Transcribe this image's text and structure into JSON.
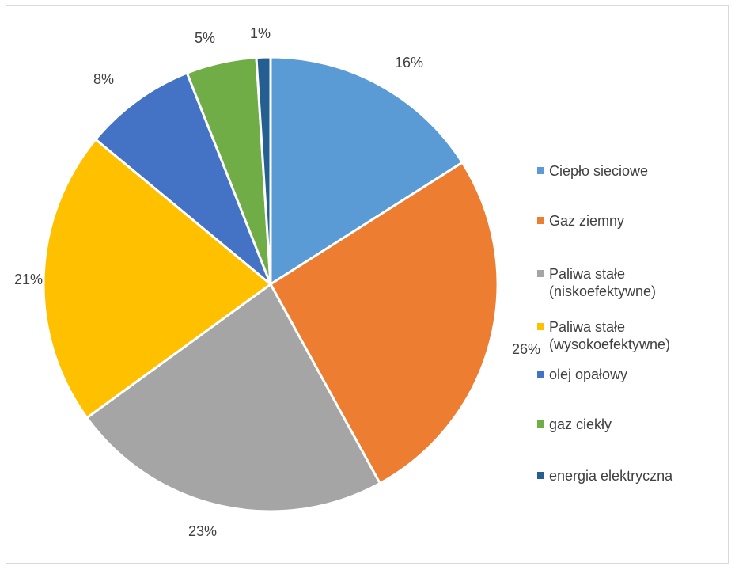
{
  "chart_data": {
    "type": "pie",
    "categories": [
      "Ciepło sieciowe",
      "Gaz ziemny",
      "Paliwa stałe\n(niskoefektywne)",
      "Paliwa stałe\n(wysokoefektywne)",
      "olej opałowy",
      "gaz ciekły",
      "energia elektryczna"
    ],
    "values": [
      16,
      26,
      23,
      21,
      8,
      5,
      1
    ],
    "labels": [
      "16%",
      "26%",
      "23%",
      "21%",
      "8%",
      "5%",
      "1%"
    ],
    "colors": [
      "#5b9bd5",
      "#ed7d31",
      "#a5a5a5",
      "#ffc000",
      "#4472c4",
      "#70ad47",
      "#255e91"
    ],
    "legend_position": "right"
  }
}
